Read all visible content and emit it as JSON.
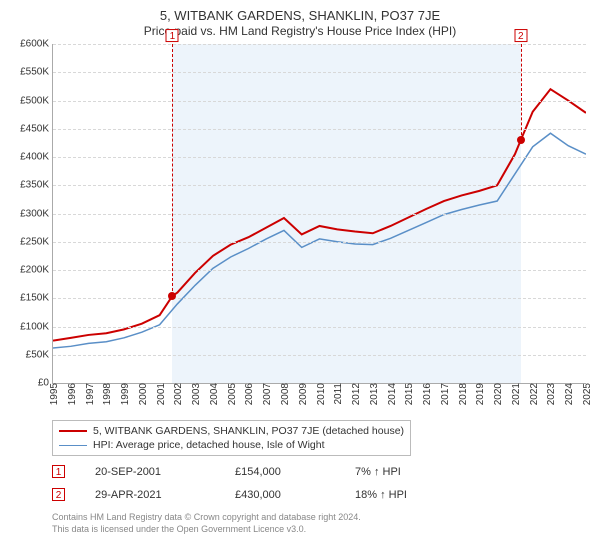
{
  "title_line1": "5, WITBANK GARDENS, SHANKLIN, PO37 7JE",
  "title_line2": "Price paid vs. HM Land Registry's House Price Index (HPI)",
  "chart": {
    "type": "line",
    "y": {
      "min": 0,
      "max": 600000,
      "step": 50000,
      "prefix": "£",
      "suffix": "K",
      "divisor": 1000
    },
    "x": {
      "years_start": 1995,
      "years_end": 2025
    },
    "colors": {
      "series_property": "#cc0000",
      "series_hpi": "#5a8fc7",
      "grid": "#d8d8d8",
      "shade": "#edf4fb",
      "bg": "#ffffff",
      "marker": "#cc0000"
    },
    "line_widths": {
      "series_property": 2,
      "series_hpi": 1.5
    },
    "line_style": "solid",
    "shaded_range_years": [
      2001.72,
      2021.33
    ],
    "series": {
      "property": [
        [
          1995,
          75000
        ],
        [
          1996,
          80000
        ],
        [
          1997,
          85000
        ],
        [
          1998,
          88000
        ],
        [
          1999,
          95000
        ],
        [
          2000,
          105000
        ],
        [
          2001,
          120000
        ],
        [
          2001.72,
          154000
        ],
        [
          2002,
          160000
        ],
        [
          2003,
          195000
        ],
        [
          2004,
          225000
        ],
        [
          2005,
          245000
        ],
        [
          2006,
          258000
        ],
        [
          2007,
          275000
        ],
        [
          2008,
          292000
        ],
        [
          2009,
          263000
        ],
        [
          2010,
          278000
        ],
        [
          2011,
          272000
        ],
        [
          2012,
          268000
        ],
        [
          2013,
          265000
        ],
        [
          2014,
          278000
        ],
        [
          2015,
          293000
        ],
        [
          2016,
          308000
        ],
        [
          2017,
          322000
        ],
        [
          2018,
          332000
        ],
        [
          2019,
          340000
        ],
        [
          2020,
          350000
        ],
        [
          2021,
          405000
        ],
        [
          2021.33,
          430000
        ],
        [
          2022,
          480000
        ],
        [
          2023,
          520000
        ],
        [
          2024,
          500000
        ],
        [
          2025,
          478000
        ]
      ],
      "hpi": [
        [
          1995,
          62000
        ],
        [
          1996,
          65000
        ],
        [
          1997,
          70000
        ],
        [
          1998,
          73000
        ],
        [
          1999,
          80000
        ],
        [
          2000,
          90000
        ],
        [
          2001,
          103000
        ],
        [
          2002,
          140000
        ],
        [
          2003,
          173000
        ],
        [
          2004,
          203000
        ],
        [
          2005,
          223000
        ],
        [
          2006,
          238000
        ],
        [
          2007,
          255000
        ],
        [
          2008,
          270000
        ],
        [
          2009,
          240000
        ],
        [
          2010,
          255000
        ],
        [
          2011,
          250000
        ],
        [
          2012,
          246000
        ],
        [
          2013,
          245000
        ],
        [
          2014,
          256000
        ],
        [
          2015,
          270000
        ],
        [
          2016,
          284000
        ],
        [
          2017,
          298000
        ],
        [
          2018,
          307000
        ],
        [
          2019,
          315000
        ],
        [
          2020,
          322000
        ],
        [
          2021,
          370000
        ],
        [
          2022,
          418000
        ],
        [
          2023,
          442000
        ],
        [
          2024,
          420000
        ],
        [
          2025,
          405000
        ]
      ]
    },
    "markers": [
      {
        "n": "1",
        "year": 2001.72,
        "value": 154000
      },
      {
        "n": "2",
        "year": 2021.33,
        "value": 430000
      }
    ]
  },
  "legend": {
    "items": [
      {
        "label": "5, WITBANK GARDENS, SHANKLIN, PO37 7JE (detached house)",
        "color": "#cc0000",
        "width": 2
      },
      {
        "label": "HPI: Average price, detached house, Isle of Wight",
        "color": "#5a8fc7",
        "width": 1.5
      }
    ]
  },
  "sales": [
    {
      "n": "1",
      "date": "20-SEP-2001",
      "price": "£154,000",
      "delta": "7% ↑ HPI"
    },
    {
      "n": "2",
      "date": "29-APR-2021",
      "price": "£430,000",
      "delta": "18% ↑ HPI"
    }
  ],
  "footer_line1": "Contains HM Land Registry data © Crown copyright and database right 2024.",
  "footer_line2": "This data is licensed under the Open Government Licence v3.0."
}
